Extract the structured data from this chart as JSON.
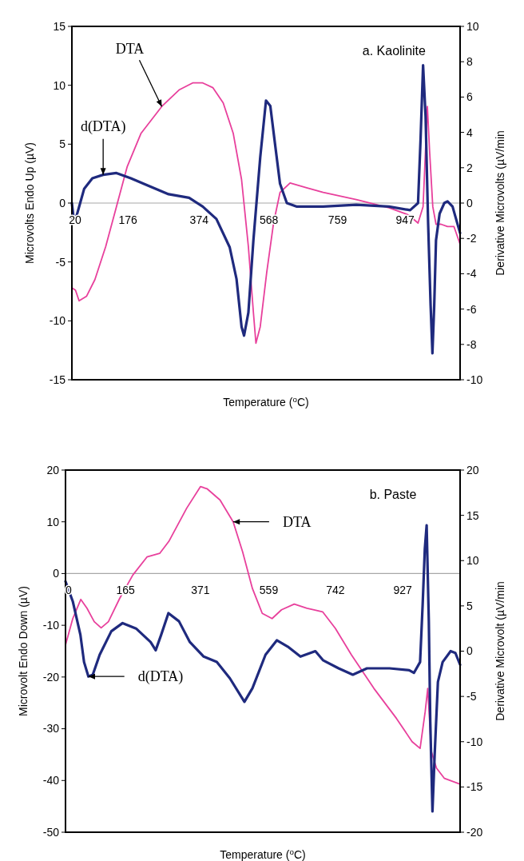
{
  "chart_data": [
    {
      "type": "line",
      "title": "a. Kaolinite",
      "xlabel": "Temperature ($^{o}$C)",
      "ylabel": "Microvolts Endo Up (µV)",
      "y2label": "Derivative Microvolts (µV/min",
      "xlim": [
        20,
        1100
      ],
      "xticks": [
        20,
        176,
        374,
        568,
        759,
        947
      ],
      "ylim": [
        -15,
        15
      ],
      "yticks": [
        -15,
        -10,
        -5,
        0,
        5,
        10,
        15
      ],
      "y2lim": [
        -10,
        10
      ],
      "y2ticks": [
        -10,
        -8,
        -6,
        -4,
        -2,
        0,
        2,
        4,
        6,
        8,
        10
      ],
      "annotations": [
        {
          "text": "DTA",
          "x": 270,
          "y": 8.2
        },
        {
          "text": "d(DTA)",
          "x": 107,
          "y": 2.4
        }
      ],
      "series": [
        {
          "color": "#e8409c",
          "x": [
            20,
            30,
            40,
            61,
            84,
            114,
            144,
            174,
            212,
            270,
            318,
            356,
            384,
            412,
            441,
            469,
            492,
            511,
            525,
            532,
            544,
            562,
            581,
            599,
            627,
            673,
            719,
            811,
            902,
            956,
            983,
            997,
            1009,
            1015,
            1024,
            1033,
            1047,
            1065,
            1083,
            1100
          ],
          "values": [
            -7.2,
            -7.4,
            -8.3,
            -7.9,
            -6.5,
            -3.7,
            -0.3,
            3.1,
            5.9,
            8.2,
            9.6,
            10.2,
            10.2,
            9.8,
            8.5,
            5.9,
            2.0,
            -3.7,
            -9.3,
            -11.9,
            -10.5,
            -5.9,
            -1.7,
            0.9,
            1.7,
            1.3,
            0.9,
            0.3,
            -0.4,
            -1.0,
            -1.7,
            -0.3,
            8.2,
            4.5,
            -0.3,
            -1.8,
            -1.8,
            -2.0,
            -2.0,
            -3.5
          ]
        },
        {
          "color": "#1f2a7e",
          "axis": "y2",
          "x": [
            20,
            25,
            32,
            43,
            54,
            77,
            107,
            144,
            184,
            231,
            289,
            346,
            384,
            422,
            459,
            478,
            492,
            499,
            511,
            525,
            544,
            560,
            572,
            586,
            599,
            618,
            646,
            719,
            811,
            902,
            961,
            983,
            990,
            997,
            1004,
            1011,
            1018,
            1023,
            1028,
            1033,
            1043,
            1056,
            1065,
            1079,
            1100
          ],
          "values": [
            0,
            -0.9,
            -0.8,
            0,
            0.8,
            1.4,
            1.6,
            1.7,
            1.4,
            1.0,
            0.5,
            0.3,
            -0.2,
            -0.9,
            -2.5,
            -4.3,
            -7.0,
            -7.5,
            -6.2,
            -2.1,
            2.6,
            5.8,
            5.5,
            3.2,
            1.1,
            0,
            -0.2,
            -0.2,
            -0.1,
            -0.2,
            -0.4,
            0,
            3.6,
            7.8,
            4.9,
            -1.1,
            -5.8,
            -8.5,
            -5.8,
            -2.1,
            -0.6,
            0,
            0.1,
            -0.2,
            -1.7
          ]
        }
      ]
    },
    {
      "type": "line",
      "title": "b. Paste",
      "xlabel": "Temperature ($^{o}$C)",
      "ylabel": "Microvolt Endo Down (µV)",
      "y2label": "Derivative Microvolt (µV/min",
      "xlim": [
        0,
        1085
      ],
      "xticks": [
        0,
        165,
        371,
        559,
        742,
        927
      ],
      "ylim": [
        -50,
        20
      ],
      "yticks": [
        -50,
        -40,
        -30,
        -20,
        -10,
        0,
        10,
        20
      ],
      "y2lim": [
        -20,
        20
      ],
      "y2ticks": [
        -20,
        -15,
        -10,
        -5,
        0,
        5,
        10,
        15,
        20
      ],
      "annotations": [
        {
          "text": "DTA",
          "x": 461,
          "y": 10.0
        },
        {
          "text": "d(DTA)",
          "x": 63,
          "y": -19.9
        }
      ],
      "series": [
        {
          "color": "#e8409c",
          "x": [
            0,
            20,
            42,
            59,
            79,
            98,
            118,
            149,
            185,
            224,
            259,
            284,
            333,
            371,
            389,
            425,
            461,
            487,
            514,
            541,
            568,
            594,
            629,
            664,
            707,
            742,
            786,
            848,
            910,
            953,
            975,
            989,
            996,
            1006,
            1020,
            1042,
            1085
          ],
          "values": [
            -13.8,
            -8.7,
            -5.0,
            -6.7,
            -9.3,
            -10.5,
            -9.3,
            -4.8,
            -0.3,
            3.2,
            3.9,
            6.2,
            12.6,
            16.8,
            16.4,
            14.2,
            10.0,
            4.2,
            -2.9,
            -7.7,
            -8.7,
            -7.0,
            -5.9,
            -6.7,
            -7.4,
            -10.6,
            -15.7,
            -22.2,
            -28,
            -32.5,
            -33.8,
            -26.7,
            -22.2,
            -34.4,
            -37.6,
            -39.6,
            -40.7
          ]
        },
        {
          "color": "#1f2a7e",
          "axis": "y2",
          "x": [
            0,
            20,
            41,
            51,
            63,
            75,
            94,
            126,
            157,
            194,
            234,
            248,
            263,
            283,
            312,
            342,
            380,
            416,
            452,
            492,
            514,
            550,
            581,
            611,
            646,
            687,
            708,
            751,
            790,
            829,
            891,
            945,
            958,
            975,
            982,
            988,
            993,
            999,
            1003,
            1009,
            1015,
            1024,
            1037,
            1059,
            1072,
            1085
          ],
          "values": [
            7.7,
            5.5,
            1.8,
            -1.2,
            -2.8,
            -2.6,
            -0.4,
            2.2,
            3.1,
            2.5,
            1.0,
            0.1,
            1.8,
            4.2,
            3.3,
            1.0,
            -0.6,
            -1.2,
            -3.0,
            -5.6,
            -4.1,
            -0.4,
            1.2,
            0.5,
            -0.6,
            0,
            -1.0,
            -1.9,
            -2.6,
            -1.9,
            -1.9,
            -2.1,
            -2.4,
            -1.2,
            5.1,
            11.3,
            13.9,
            3.3,
            -7.8,
            -17.7,
            -11.5,
            -3.4,
            -1.2,
            0,
            -0.2,
            -1.5
          ]
        }
      ]
    }
  ]
}
